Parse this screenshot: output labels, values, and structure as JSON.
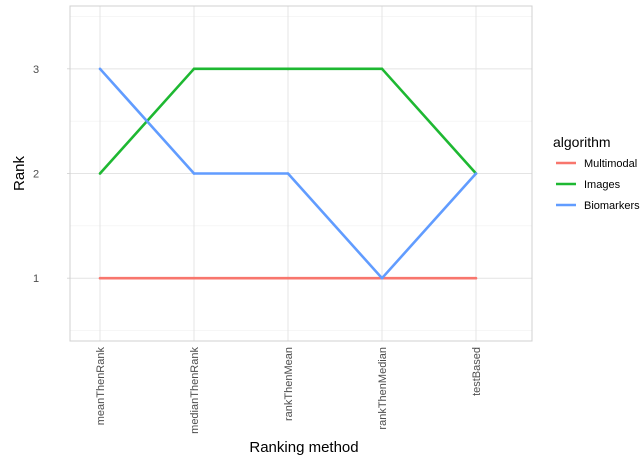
{
  "chart_data": {
    "type": "line",
    "xlabel": "Ranking method",
    "ylabel": "Rank",
    "categories": [
      "meanThenRank",
      "medianThenRank",
      "rankThenMean",
      "rankThenMedian",
      "testBased"
    ],
    "ylim": [
      0.4,
      3.6
    ],
    "yticks": [
      "1",
      "2",
      "3"
    ],
    "grid": true,
    "legend": {
      "title": "algorithm",
      "position": "right",
      "entries": [
        "Multimodal",
        "Images",
        "Biomarkers"
      ]
    },
    "series": [
      {
        "name": "Multimodal",
        "color": "#F8766D",
        "values": [
          1,
          1,
          1,
          1,
          1
        ]
      },
      {
        "name": "Images",
        "color": "#1EB832",
        "values": [
          2,
          3,
          3,
          3,
          2
        ]
      },
      {
        "name": "Biomarkers",
        "color": "#619CFF",
        "values": [
          3,
          2,
          2,
          1,
          2
        ]
      }
    ]
  }
}
